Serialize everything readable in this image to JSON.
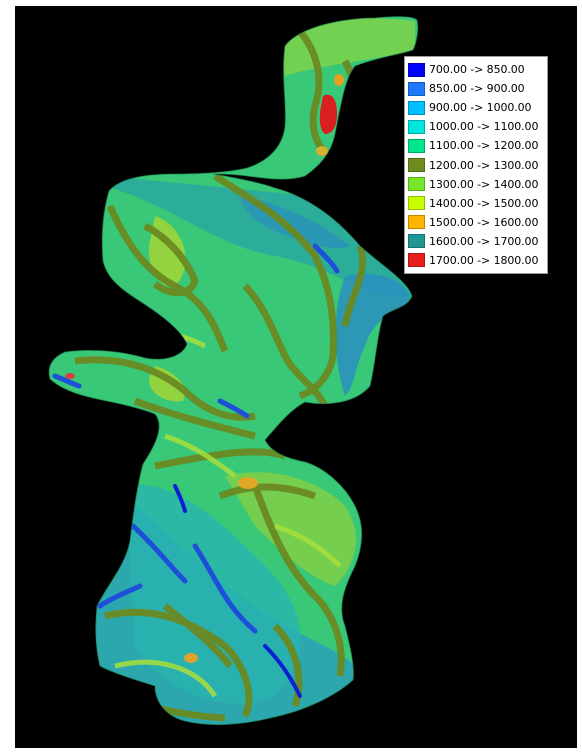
{
  "legend": {
    "items": [
      {
        "label": "700.00 -> 850.00",
        "color": "#0000ff"
      },
      {
        "label": "850.00 -> 900.00",
        "color": "#1e78ff"
      },
      {
        "label": "900.00 -> 1000.00",
        "color": "#00beff"
      },
      {
        "label": "1000.00 -> 1100.00",
        "color": "#00e6dc"
      },
      {
        "label": "1100.00 -> 1200.00",
        "color": "#00e68c"
      },
      {
        "label": "1200.00 -> 1300.00",
        "color": "#6e8c1e"
      },
      {
        "label": "1300.00 -> 1400.00",
        "color": "#78e628"
      },
      {
        "label": "1400.00 -> 1500.00",
        "color": "#c8ff00"
      },
      {
        "label": "1500.00 -> 1600.00",
        "color": "#ffb400"
      },
      {
        "label": "1600.00 -> 1700.00",
        "color": "#1e9696"
      },
      {
        "label": "1700.00 -> 1800.00",
        "color": "#e61e1e"
      }
    ]
  },
  "map": {
    "background": "#000000",
    "base_fill": "#2ec47a",
    "palette": {
      "teal": "#22aaa0",
      "blue_teal": "#2a8fbf",
      "green": "#3fcf6a",
      "olive": "#6b8a22",
      "yellow_green": "#9ed43a",
      "blue": "#1d4fd8",
      "deep_blue": "#0a1fd0",
      "red": "#d82020",
      "orange": "#e4a020"
    }
  }
}
